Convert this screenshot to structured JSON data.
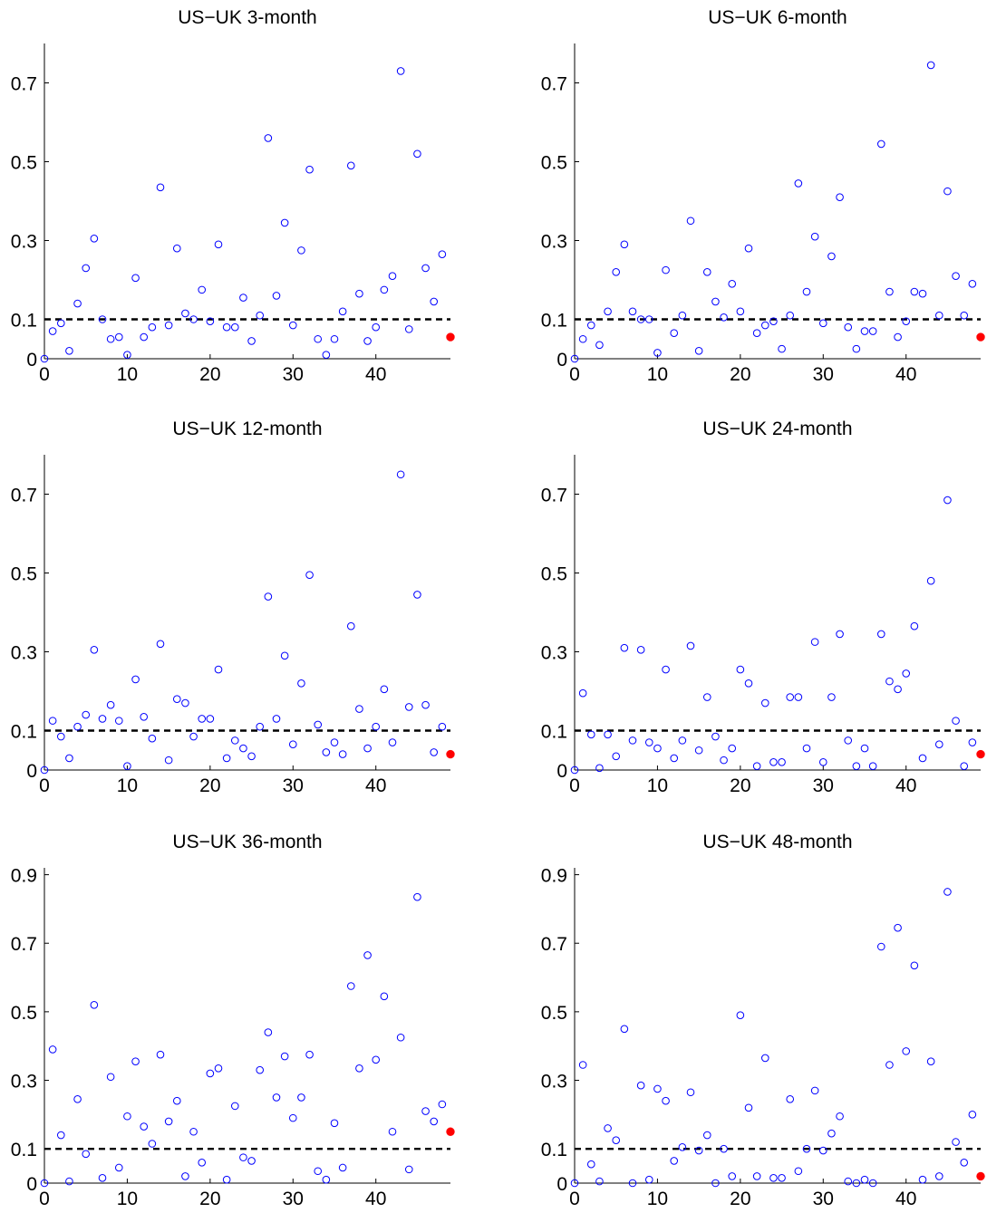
{
  "chart_data": [
    {
      "type": "scatter",
      "title": "US−UK 3-month",
      "xlim": [
        0,
        49
      ],
      "ylim": [
        0,
        0.8
      ],
      "xticks": [
        0,
        10,
        20,
        30,
        40
      ],
      "yticks": [
        0,
        0.1,
        0.3,
        0.5,
        0.7
      ],
      "ytick_labels": [
        "0",
        "0.1",
        "0.3",
        "0.5",
        "0.7"
      ],
      "xlabel": "",
      "ylabel": "",
      "grid": false,
      "threshold": 0.1,
      "x": [
        0,
        1,
        2,
        3,
        4,
        5,
        6,
        7,
        8,
        9,
        10,
        11,
        12,
        13,
        14,
        15,
        16,
        17,
        18,
        19,
        20,
        21,
        22,
        23,
        24,
        25,
        26,
        27,
        28,
        29,
        30,
        31,
        32,
        33,
        34,
        35,
        36,
        37,
        38,
        39,
        40,
        41,
        42,
        43,
        44,
        45,
        46,
        47,
        48
      ],
      "y": [
        0.0,
        0.07,
        0.09,
        0.02,
        0.14,
        0.23,
        0.305,
        0.1,
        0.05,
        0.055,
        0.01,
        0.205,
        0.055,
        0.08,
        0.435,
        0.085,
        0.28,
        0.115,
        0.1,
        0.175,
        0.095,
        0.29,
        0.08,
        0.08,
        0.155,
        0.045,
        0.11,
        0.56,
        0.16,
        0.345,
        0.085,
        0.275,
        0.48,
        0.05,
        0.01,
        0.05,
        0.12,
        0.49,
        0.165,
        0.045,
        0.08,
        0.175,
        0.21,
        0.73,
        0.075,
        0.52,
        0.23,
        0.145,
        0.265
      ],
      "highlight": {
        "x": 49,
        "y": 0.055
      }
    },
    {
      "type": "scatter",
      "title": "US−UK 6-month",
      "xlim": [
        0,
        49
      ],
      "ylim": [
        0,
        0.8
      ],
      "xticks": [
        0,
        10,
        20,
        30,
        40
      ],
      "yticks": [
        0,
        0.1,
        0.3,
        0.5,
        0.7
      ],
      "ytick_labels": [
        "0",
        "0.1",
        "0.3",
        "0.5",
        "0.7"
      ],
      "xlabel": "",
      "ylabel": "",
      "grid": false,
      "threshold": 0.1,
      "x": [
        0,
        1,
        2,
        3,
        4,
        5,
        6,
        7,
        8,
        9,
        10,
        11,
        12,
        13,
        14,
        15,
        16,
        17,
        18,
        19,
        20,
        21,
        22,
        23,
        24,
        25,
        26,
        27,
        28,
        29,
        30,
        31,
        32,
        33,
        34,
        35,
        36,
        37,
        38,
        39,
        40,
        41,
        42,
        43,
        44,
        45,
        46,
        47,
        48
      ],
      "y": [
        0.0,
        0.05,
        0.085,
        0.035,
        0.12,
        0.22,
        0.29,
        0.12,
        0.1,
        0.1,
        0.015,
        0.225,
        0.065,
        0.11,
        0.35,
        0.02,
        0.22,
        0.145,
        0.105,
        0.19,
        0.12,
        0.28,
        0.065,
        0.085,
        0.095,
        0.025,
        0.11,
        0.445,
        0.17,
        0.31,
        0.09,
        0.26,
        0.41,
        0.08,
        0.025,
        0.07,
        0.07,
        0.545,
        0.17,
        0.055,
        0.095,
        0.17,
        0.165,
        0.745,
        0.11,
        0.425,
        0.21,
        0.11,
        0.19
      ],
      "highlight": {
        "x": 49,
        "y": 0.055
      }
    },
    {
      "type": "scatter",
      "title": "US−UK 12-month",
      "xlim": [
        0,
        49
      ],
      "ylim": [
        0,
        0.8
      ],
      "xticks": [
        0,
        10,
        20,
        30,
        40
      ],
      "yticks": [
        0,
        0.1,
        0.3,
        0.5,
        0.7
      ],
      "ytick_labels": [
        "0",
        "0.1",
        "0.3",
        "0.5",
        "0.7"
      ],
      "xlabel": "",
      "ylabel": "",
      "grid": false,
      "threshold": 0.1,
      "x": [
        0,
        1,
        2,
        3,
        4,
        5,
        6,
        7,
        8,
        9,
        10,
        11,
        12,
        13,
        14,
        15,
        16,
        17,
        18,
        19,
        20,
        21,
        22,
        23,
        24,
        25,
        26,
        27,
        28,
        29,
        30,
        31,
        32,
        33,
        34,
        35,
        36,
        37,
        38,
        39,
        40,
        41,
        42,
        43,
        44,
        45,
        46,
        47,
        48
      ],
      "y": [
        0.0,
        0.125,
        0.085,
        0.03,
        0.11,
        0.14,
        0.305,
        0.13,
        0.165,
        0.125,
        0.01,
        0.23,
        0.135,
        0.08,
        0.32,
        0.025,
        0.18,
        0.17,
        0.085,
        0.13,
        0.13,
        0.255,
        0.03,
        0.075,
        0.055,
        0.035,
        0.11,
        0.44,
        0.13,
        0.29,
        0.065,
        0.22,
        0.495,
        0.115,
        0.045,
        0.07,
        0.04,
        0.365,
        0.155,
        0.055,
        0.11,
        0.205,
        0.07,
        0.75,
        0.16,
        0.445,
        0.165,
        0.045,
        0.11
      ],
      "highlight": {
        "x": 49,
        "y": 0.04
      }
    },
    {
      "type": "scatter",
      "title": "US−UK 24-month",
      "xlim": [
        0,
        49
      ],
      "ylim": [
        0,
        0.8
      ],
      "xticks": [
        0,
        10,
        20,
        30,
        40
      ],
      "yticks": [
        0,
        0.1,
        0.3,
        0.5,
        0.7
      ],
      "ytick_labels": [
        "0",
        "0.1",
        "0.3",
        "0.5",
        "0.7"
      ],
      "xlabel": "",
      "ylabel": "",
      "grid": false,
      "threshold": 0.1,
      "x": [
        0,
        1,
        2,
        3,
        4,
        5,
        6,
        7,
        8,
        9,
        10,
        11,
        12,
        13,
        14,
        15,
        16,
        17,
        18,
        19,
        20,
        21,
        22,
        23,
        24,
        25,
        26,
        27,
        28,
        29,
        30,
        31,
        32,
        33,
        34,
        35,
        36,
        37,
        38,
        39,
        40,
        41,
        42,
        43,
        44,
        45,
        46,
        47,
        48
      ],
      "y": [
        0.0,
        0.195,
        0.09,
        0.005,
        0.09,
        0.035,
        0.31,
        0.075,
        0.305,
        0.07,
        0.055,
        0.255,
        0.03,
        0.075,
        0.315,
        0.05,
        0.185,
        0.085,
        0.025,
        0.055,
        0.255,
        0.22,
        0.01,
        0.17,
        0.02,
        0.02,
        0.185,
        0.185,
        0.055,
        0.325,
        0.02,
        0.185,
        0.345,
        0.075,
        0.01,
        0.055,
        0.01,
        0.345,
        0.225,
        0.205,
        0.245,
        0.365,
        0.03,
        0.48,
        0.065,
        0.685,
        0.125,
        0.01,
        0.07
      ],
      "highlight": {
        "x": 49,
        "y": 0.04
      }
    },
    {
      "type": "scatter",
      "title": "US−UK 36-month",
      "xlim": [
        0,
        49
      ],
      "ylim": [
        0,
        0.92
      ],
      "xticks": [
        0,
        10,
        20,
        30,
        40
      ],
      "yticks": [
        0,
        0.1,
        0.3,
        0.5,
        0.7,
        0.9
      ],
      "ytick_labels": [
        "0",
        "0.1",
        "0.3",
        "0.5",
        "0.7",
        "0.9"
      ],
      "xlabel": "",
      "ylabel": "",
      "grid": false,
      "threshold": 0.1,
      "x": [
        0,
        1,
        2,
        3,
        4,
        5,
        6,
        7,
        8,
        9,
        10,
        11,
        12,
        13,
        14,
        15,
        16,
        17,
        18,
        19,
        20,
        21,
        22,
        23,
        24,
        25,
        26,
        27,
        28,
        29,
        30,
        31,
        32,
        33,
        34,
        35,
        36,
        37,
        38,
        39,
        40,
        41,
        42,
        43,
        44,
        45,
        46,
        47,
        48
      ],
      "y": [
        0.0,
        0.39,
        0.14,
        0.005,
        0.245,
        0.085,
        0.52,
        0.015,
        0.31,
        0.045,
        0.195,
        0.355,
        0.165,
        0.115,
        0.375,
        0.18,
        0.24,
        0.02,
        0.15,
        0.06,
        0.32,
        0.335,
        0.01,
        0.225,
        0.075,
        0.065,
        0.33,
        0.44,
        0.25,
        0.37,
        0.19,
        0.25,
        0.375,
        0.035,
        0.01,
        0.175,
        0.045,
        0.575,
        0.335,
        0.665,
        0.36,
        0.545,
        0.15,
        0.425,
        0.04,
        0.835,
        0.21,
        0.18,
        0.23
      ],
      "highlight": {
        "x": 49,
        "y": 0.15
      }
    },
    {
      "type": "scatter",
      "title": "US−UK 48-month",
      "xlim": [
        0,
        49
      ],
      "ylim": [
        0,
        0.92
      ],
      "xticks": [
        0,
        10,
        20,
        30,
        40
      ],
      "yticks": [
        0,
        0.1,
        0.3,
        0.5,
        0.7,
        0.9
      ],
      "ytick_labels": [
        "0",
        "0.1",
        "0.3",
        "0.5",
        "0.7",
        "0.9"
      ],
      "xlabel": "",
      "ylabel": "",
      "grid": false,
      "threshold": 0.1,
      "x": [
        0,
        1,
        2,
        3,
        4,
        5,
        6,
        7,
        8,
        9,
        10,
        11,
        12,
        13,
        14,
        15,
        16,
        17,
        18,
        19,
        20,
        21,
        22,
        23,
        24,
        25,
        26,
        27,
        28,
        29,
        30,
        31,
        32,
        33,
        34,
        35,
        36,
        37,
        38,
        39,
        40,
        41,
        42,
        43,
        44,
        45,
        46,
        47,
        48
      ],
      "y": [
        0.0,
        0.345,
        0.055,
        0.005,
        0.16,
        0.125,
        0.45,
        0.0,
        0.285,
        0.01,
        0.275,
        0.24,
        0.065,
        0.105,
        0.265,
        0.095,
        0.14,
        0.0,
        0.1,
        0.02,
        0.49,
        0.22,
        0.02,
        0.365,
        0.015,
        0.015,
        0.245,
        0.035,
        0.1,
        0.27,
        0.095,
        0.145,
        0.195,
        0.005,
        0.0,
        0.01,
        0.0,
        0.69,
        0.345,
        0.745,
        0.385,
        0.635,
        0.01,
        0.355,
        0.02,
        0.85,
        0.12,
        0.06,
        0.2
      ],
      "highlight": {
        "x": 49,
        "y": 0.02
      }
    }
  ],
  "colors": {
    "marker": "#0000ff",
    "highlight": "#ff0000",
    "threshold_line": "#000000",
    "axes": "#000000"
  }
}
